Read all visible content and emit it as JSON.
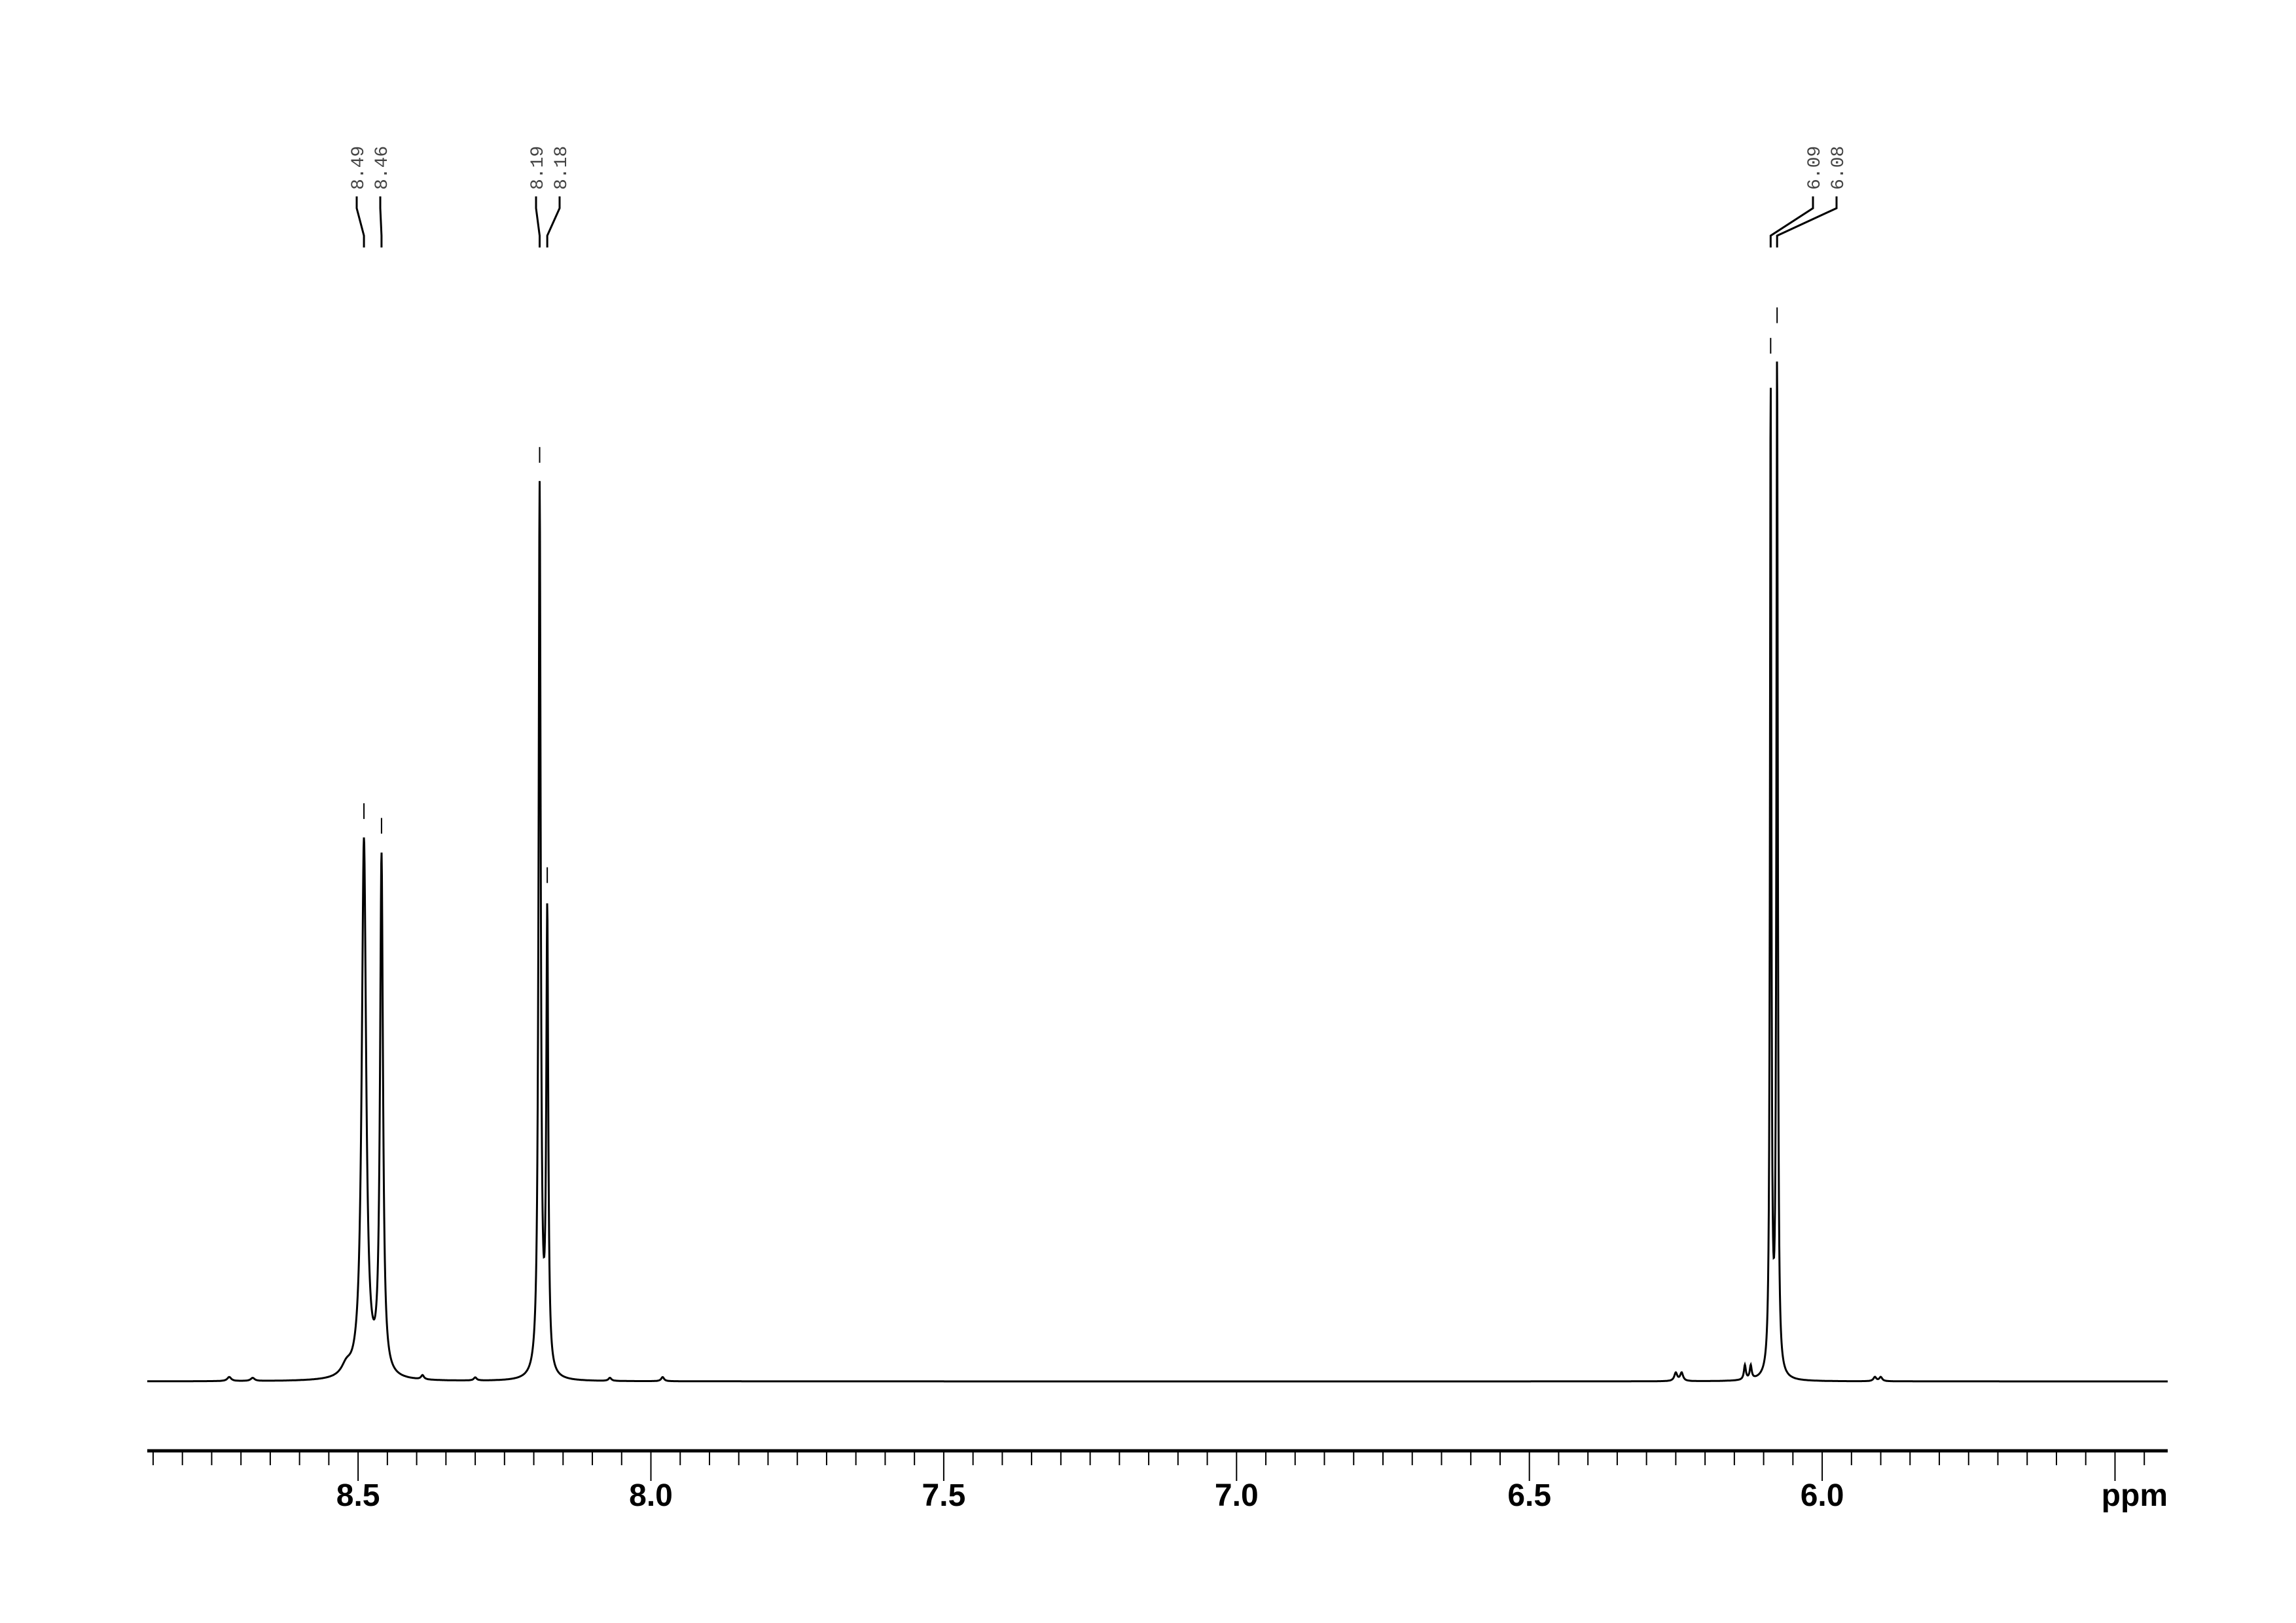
{
  "chart_data": {
    "type": "line",
    "title": "",
    "xlabel": "ppm",
    "ylabel": "",
    "xlim": [
      8.86,
      5.41
    ],
    "x_reversed": true,
    "grid": false,
    "legend": "none",
    "line_color": "#000000",
    "x_ticks": [
      8.5,
      8.0,
      7.5,
      7.0,
      6.5,
      6.0
    ],
    "x_tick_labels": [
      "8.5",
      "8.0",
      "7.5",
      "7.0",
      "6.5",
      "6.0"
    ],
    "minor_tick_step": 0.05,
    "peak_labels": [
      "8.49",
      "8.46",
      "8.19",
      "8.18",
      "6.09",
      "6.08"
    ],
    "peaks": [
      {
        "ppm": 8.49,
        "intensity": 0.52,
        "width": 0.0045
      },
      {
        "ppm": 8.46,
        "intensity": 0.5,
        "width": 0.003
      },
      {
        "ppm": 8.19,
        "intensity": 0.86,
        "width": 0.0022
      },
      {
        "ppm": 8.177,
        "intensity": 0.44,
        "width": 0.002
      },
      {
        "ppm": 6.088,
        "intensity": 0.96,
        "width": 0.0014
      },
      {
        "ppm": 6.077,
        "intensity": 0.99,
        "width": 0.0014
      }
    ],
    "minor_peaks": [
      {
        "ppm": 8.72,
        "intensity": 0.004,
        "width": 0.004
      },
      {
        "ppm": 8.68,
        "intensity": 0.003,
        "width": 0.004
      },
      {
        "ppm": 8.52,
        "intensity": 0.01,
        "width": 0.01
      },
      {
        "ppm": 8.39,
        "intensity": 0.004,
        "width": 0.003
      },
      {
        "ppm": 8.3,
        "intensity": 0.003,
        "width": 0.003
      },
      {
        "ppm": 8.07,
        "intensity": 0.003,
        "width": 0.003
      },
      {
        "ppm": 7.98,
        "intensity": 0.004,
        "width": 0.003
      },
      {
        "ppm": 6.25,
        "intensity": 0.008,
        "width": 0.003
      },
      {
        "ppm": 6.24,
        "intensity": 0.008,
        "width": 0.003
      },
      {
        "ppm": 6.132,
        "intensity": 0.014,
        "width": 0.002
      },
      {
        "ppm": 6.122,
        "intensity": 0.013,
        "width": 0.002
      },
      {
        "ppm": 5.91,
        "intensity": 0.004,
        "width": 0.003
      },
      {
        "ppm": 5.9,
        "intensity": 0.004,
        "width": 0.003
      }
    ]
  }
}
